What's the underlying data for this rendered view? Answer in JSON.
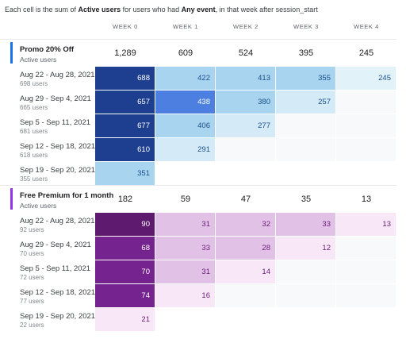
{
  "caption": {
    "part1": "Each cell is the sum of ",
    "metric": "Active users",
    "part2": " for users who had ",
    "event": "Any event",
    "part3": ", in that week after session_start"
  },
  "weeks": [
    "WEEK 0",
    "WEEK 1",
    "WEEK 2",
    "WEEK 3",
    "WEEK 4"
  ],
  "segments": [
    {
      "title": "Promo 20% Off",
      "subtitle": "Active users",
      "accent": "#1a73e8",
      "totals": [
        "1,289",
        "609",
        "524",
        "395",
        "245"
      ],
      "rows": [
        {
          "label": "Aug 22 - Aug 28, 2021",
          "users": "698 users",
          "values": [
            "688",
            "422",
            "413",
            "355",
            "245"
          ]
        },
        {
          "label": "Aug 29 - Sep 4, 2021",
          "users": "665 users",
          "values": [
            "657",
            "438",
            "380",
            "257",
            ""
          ]
        },
        {
          "label": "Sep 5 - Sep 11, 2021",
          "users": "681 users",
          "values": [
            "677",
            "406",
            "277",
            "",
            ""
          ]
        },
        {
          "label": "Sep 12 - Sep 18, 2021",
          "users": "618 users",
          "values": [
            "610",
            "291",
            "",
            "",
            ""
          ]
        },
        {
          "label": "Sep 19 - Sep 20, 2021",
          "users": "355 users",
          "values": [
            "351",
            "",
            "",
            "",
            ""
          ]
        }
      ],
      "colors": [
        [
          "#1e3f8f",
          "#a8d4ef",
          "#a8d4ef",
          "#a8d4ef",
          "#e1f3f9"
        ],
        [
          "#1e3f8f",
          "#4c7fe0",
          "#a8d4ef",
          "#d4ebf7",
          "#f8f9fa"
        ],
        [
          "#1e3f8f",
          "#a8d4ef",
          "#d4ebf7",
          "#f8f9fa",
          "#f8f9fa"
        ],
        [
          "#1e3f8f",
          "#d4ebf7",
          "#f8f9fa",
          "#f8f9fa",
          "#f8f9fa"
        ],
        [
          "#a8d4ef",
          "#ffffff",
          "#ffffff",
          "#ffffff",
          "#ffffff"
        ]
      ]
    },
    {
      "title": "Free Premium for 1 month",
      "subtitle": "Active users",
      "accent": "#9334e6",
      "totals": [
        "182",
        "59",
        "47",
        "35",
        "13"
      ],
      "rows": [
        {
          "label": "Aug 22 - Aug 28, 2021",
          "users": "92 users",
          "values": [
            "90",
            "31",
            "32",
            "33",
            "13"
          ]
        },
        {
          "label": "Aug 29 - Sep 4, 2021",
          "users": "70 users",
          "values": [
            "68",
            "33",
            "28",
            "12",
            ""
          ]
        },
        {
          "label": "Sep 5 - Sep 11, 2021",
          "users": "72 users",
          "values": [
            "70",
            "31",
            "14",
            "",
            ""
          ]
        },
        {
          "label": "Sep 12 - Sep 18, 2021",
          "users": "77 users",
          "values": [
            "74",
            "16",
            "",
            "",
            ""
          ]
        },
        {
          "label": "Sep 19 - Sep 20, 2021",
          "users": "22 users",
          "values": [
            "21",
            "",
            "",
            "",
            ""
          ]
        }
      ],
      "colors": [
        [
          "#5e1a6e",
          "#e2c1e6",
          "#e2c1e6",
          "#e2c1e6",
          "#f8e7f6"
        ],
        [
          "#75238e",
          "#e2c1e6",
          "#e2c1e6",
          "#f8e7f6",
          "#f8f9fa"
        ],
        [
          "#75238e",
          "#e2c1e6",
          "#f8e7f6",
          "#f8f9fa",
          "#f8f9fa"
        ],
        [
          "#75238e",
          "#f8e7f6",
          "#f8f9fa",
          "#f8f9fa",
          "#f8f9fa"
        ],
        [
          "#f8e7f6",
          "#ffffff",
          "#ffffff",
          "#ffffff",
          "#ffffff"
        ]
      ]
    }
  ]
}
